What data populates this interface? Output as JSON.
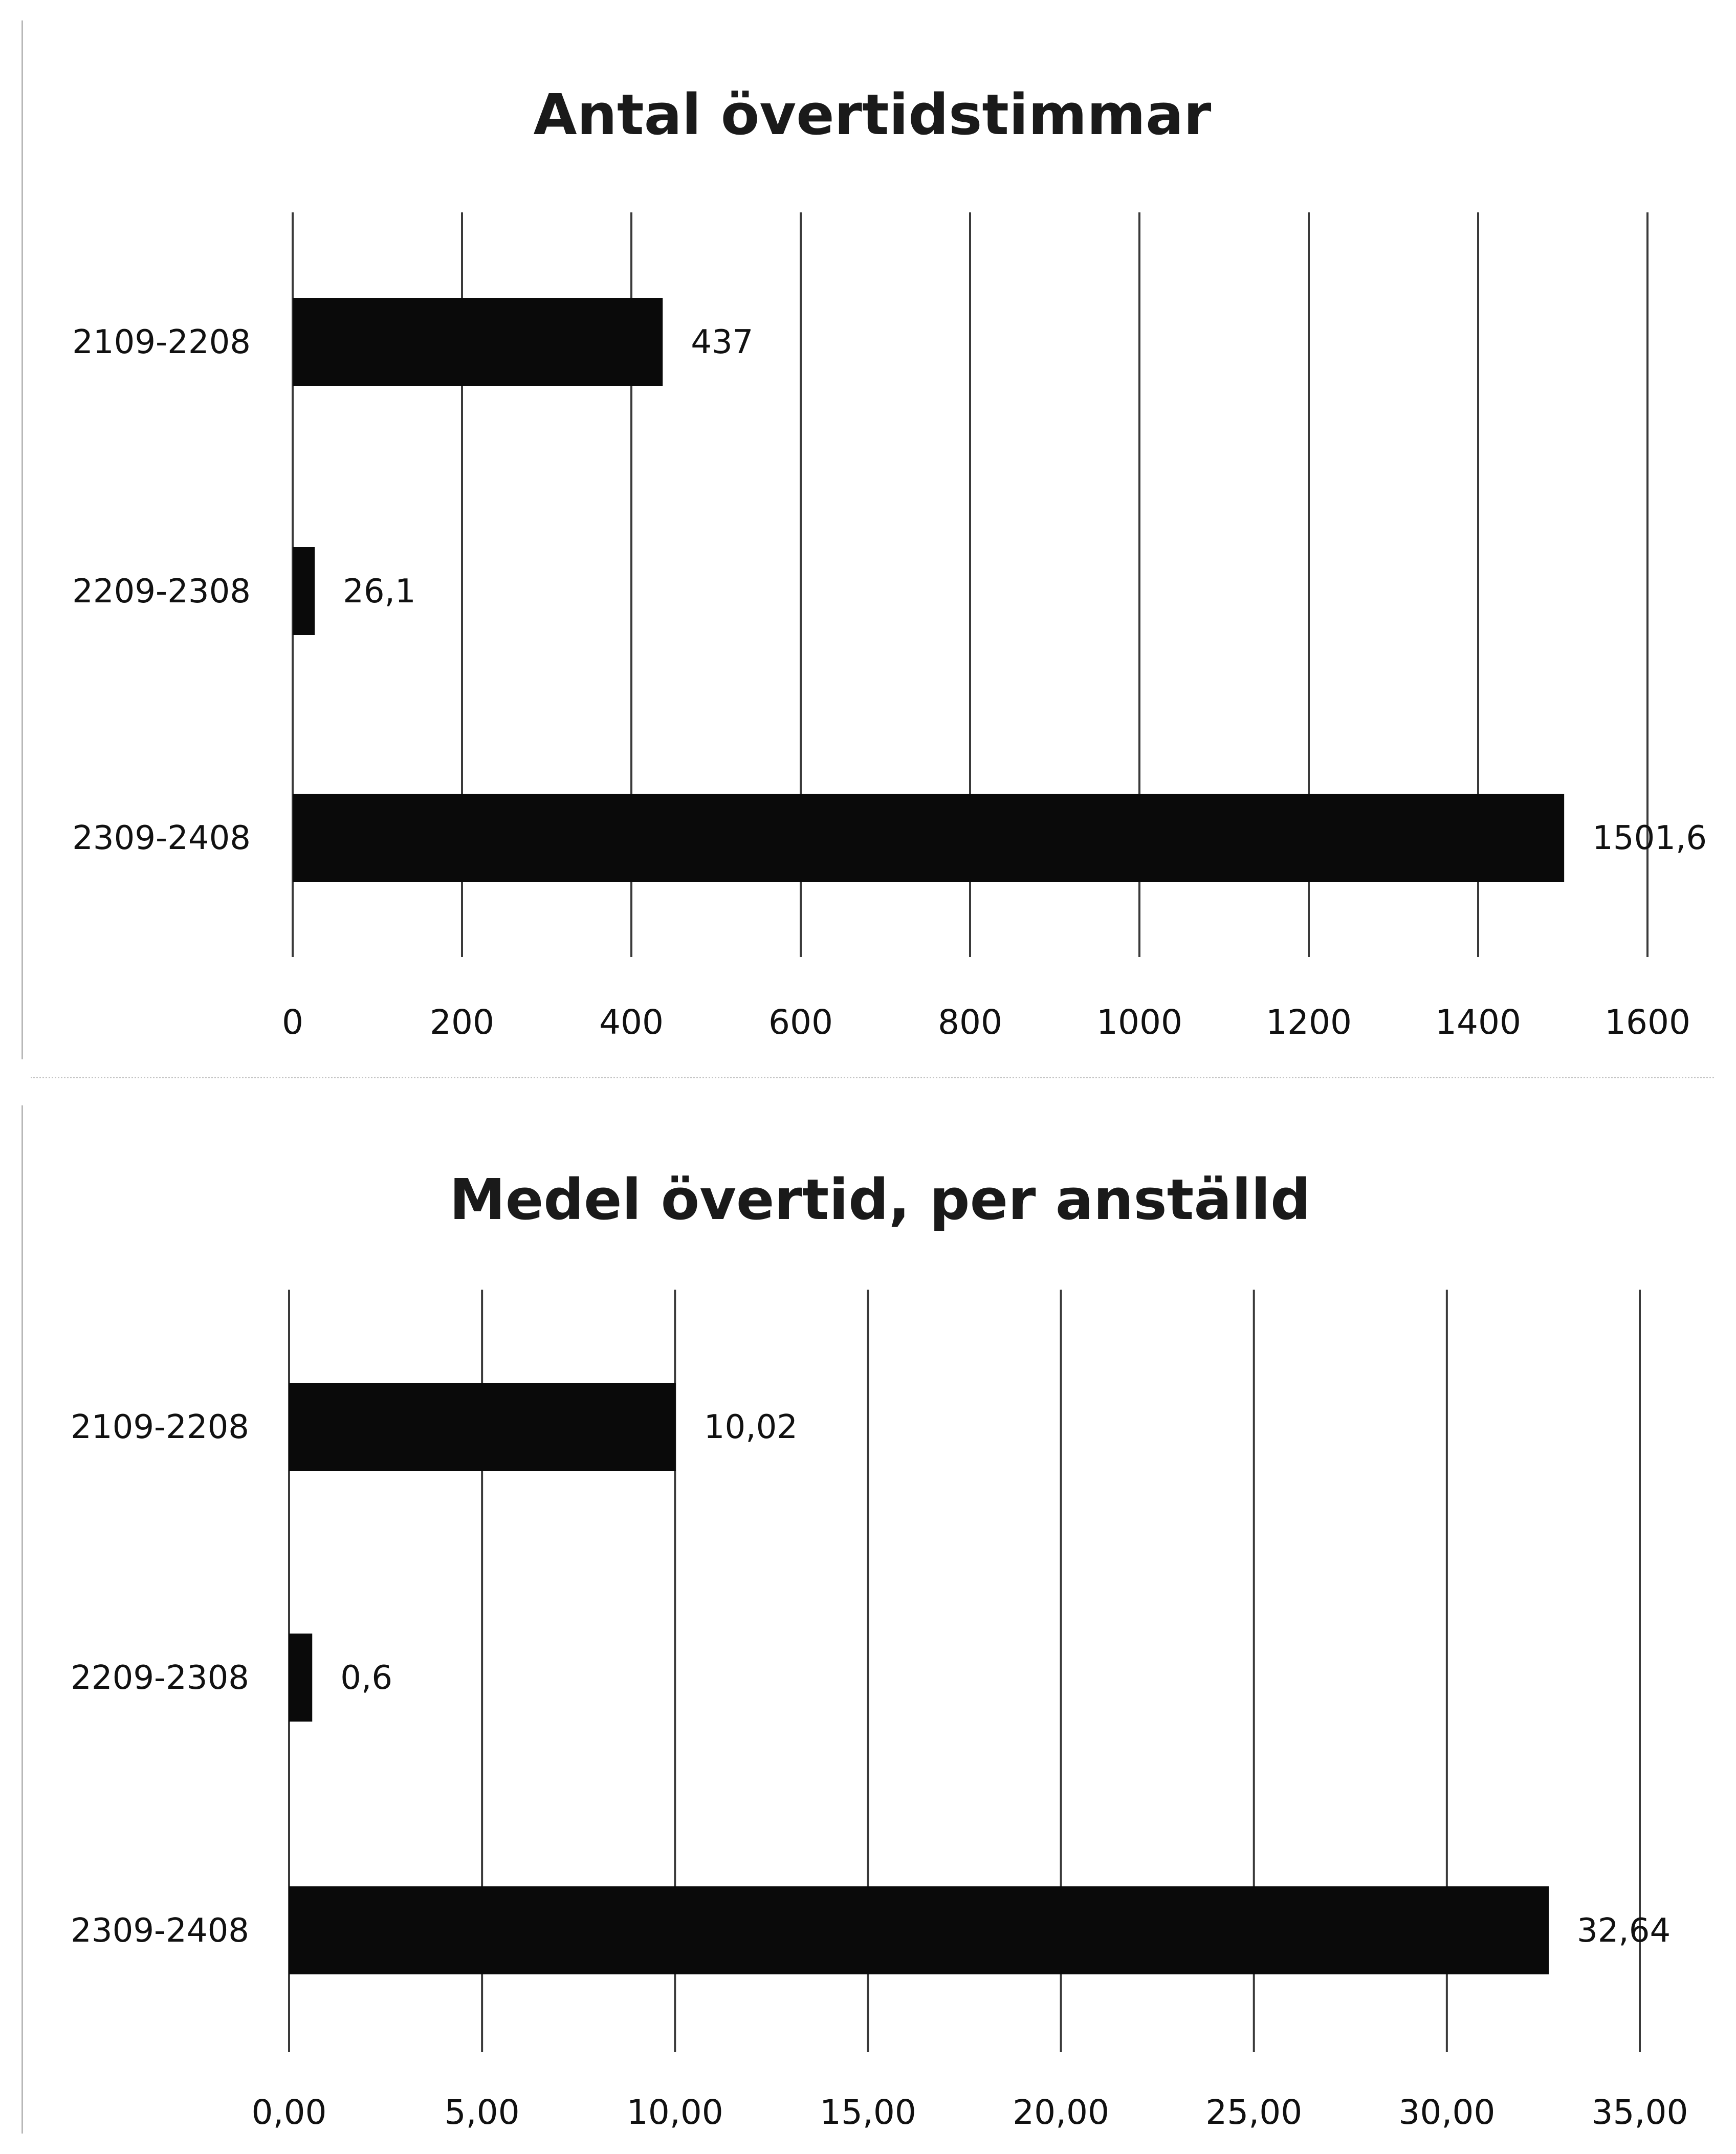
{
  "chart_data": [
    {
      "type": "bar",
      "orientation": "horizontal",
      "title": "Antal övertidstimmar",
      "categories": [
        "2109-2208",
        "2209-2308",
        "2309-2408"
      ],
      "values": [
        437,
        26.1,
        1501.6
      ],
      "value_labels": [
        "437",
        "26,1",
        "1501,6"
      ],
      "xlim": [
        0,
        1600
      ],
      "x_ticks": [
        0,
        200,
        400,
        600,
        800,
        1000,
        1200,
        1400,
        1600
      ],
      "x_tick_labels": [
        "0",
        "200",
        "400",
        "600",
        "800",
        "1000",
        "1200",
        "1400",
        "1600"
      ],
      "grid": true,
      "bar_color": "#0a0a0a"
    },
    {
      "type": "bar",
      "orientation": "horizontal",
      "title": "Medel övertid, per anställd",
      "categories": [
        "2109-2208",
        "2209-2308",
        "2309-2408"
      ],
      "values": [
        10.02,
        0.6,
        32.64
      ],
      "value_labels": [
        "10,02",
        "0,6",
        "32,64"
      ],
      "xlim": [
        0,
        35
      ],
      "x_ticks": [
        0,
        5,
        10,
        15,
        20,
        25,
        30,
        35
      ],
      "x_tick_labels": [
        "0,00",
        "5,00",
        "10,00",
        "15,00",
        "20,00",
        "25,00",
        "30,00",
        "35,00"
      ],
      "grid": true,
      "bar_color": "#0a0a0a"
    }
  ]
}
